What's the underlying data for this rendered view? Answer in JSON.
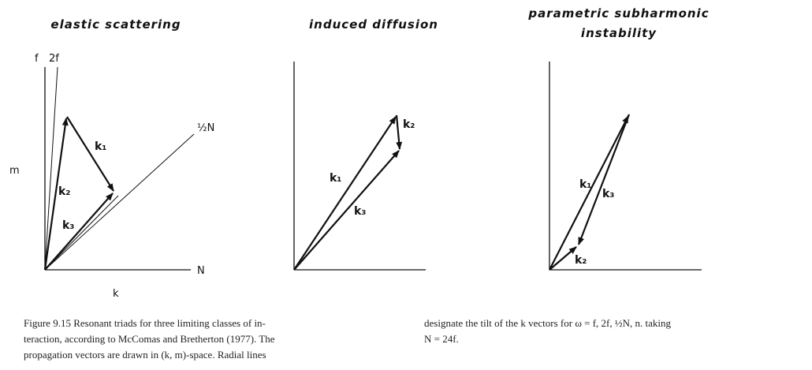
{
  "panels": [
    {
      "title": [
        "elastic scattering"
      ],
      "labels": {
        "f": "f",
        "2f": "2f",
        "half_n": "½N",
        "n": "N",
        "m": "m",
        "k": "k"
      },
      "vectors": [
        "k₁",
        "k₂",
        "k₃"
      ]
    },
    {
      "title": [
        "induced diffusion"
      ],
      "vectors": [
        "k₁",
        "k₂",
        "k₃"
      ]
    },
    {
      "title": [
        "parametric subharmonic",
        "instability"
      ],
      "vectors": [
        "k₁",
        "k₃",
        "k₂"
      ]
    }
  ],
  "caption": {
    "left": [
      "Figure 9.15 Resonant triads for three limiting classes of in-",
      "teraction, according to McComas and Bretherton (1977). The",
      "propagation vectors are drawn in (k, m)-space. Radial lines"
    ],
    "right": [
      "designate the tilt of the k vectors for ω = f, 2f, ½N, n. taking",
      "N = 24f."
    ]
  }
}
